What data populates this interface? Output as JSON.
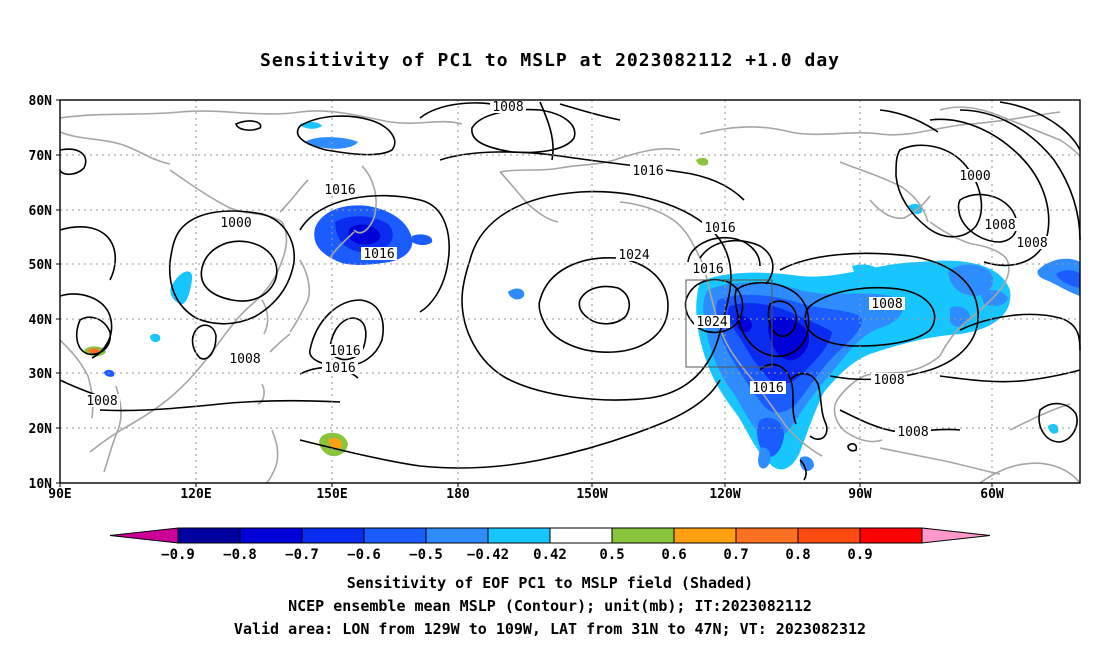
{
  "title": "Sensitivity of PC1 to MSLP at 2023082112 +1.0 day",
  "lat_labels": [
    "80N",
    "70N",
    "60N",
    "50N",
    "40N",
    "30N",
    "20N",
    "10N"
  ],
  "lon_labels": [
    "90E",
    "120E",
    "150E",
    "180",
    "150W",
    "120W",
    "90W",
    "60W"
  ],
  "contour_labels": [
    "1008",
    "1016",
    "1000",
    "1000",
    "1008",
    "1008",
    "1016",
    "1024",
    "1016",
    "1016",
    "1016",
    "1024",
    "1008",
    "1016",
    "1016",
    "1008",
    "1016",
    "1008",
    "1008",
    "1008"
  ],
  "colorbar": {
    "labels": [
      "-0.9",
      "-0.8",
      "-0.7",
      "-0.6",
      "-0.5",
      "-0.42",
      "0.42",
      "0.5",
      "0.6",
      "0.7",
      "0.8",
      "0.9"
    ],
    "colors": [
      "#cc0099",
      "#0000a0",
      "#0000d8",
      "#0a2cf0",
      "#1a5cff",
      "#2e8cff",
      "#17c5ff",
      "#ffffff",
      "#88c43c",
      "#ffa010",
      "#ff7020",
      "#ff4a10",
      "#ff0000",
      "#ff99cc"
    ]
  },
  "captions": [
    "Sensitivity of EOF PC1 to MSLP field (Shaded)",
    "NCEP ensemble mean MSLP (Contour); unit(mb); IT:2023082112",
    "Valid area: LON from 129W to 109W, LAT from 31N to 47N; VT: 2023082312"
  ],
  "valid_area": {
    "lon": [
      -129,
      -109
    ],
    "lat": [
      31,
      47
    ]
  }
}
